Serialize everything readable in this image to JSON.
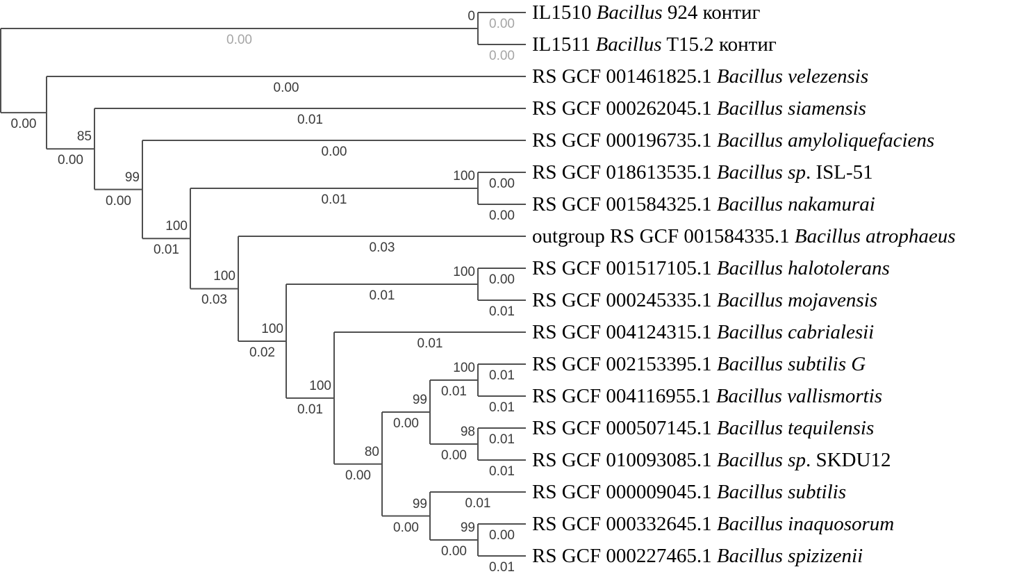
{
  "figure": {
    "kind": "phylogenetic-tree",
    "background": "#ffffff",
    "line_color": "#4f4f4f",
    "number_color": "#3a3a3a",
    "muted_number_color": "#a6a6a6",
    "taxon_color": "#000000"
  },
  "tree": {
    "support": null,
    "length": null,
    "children": [
      {
        "support": "0",
        "length": "0.00",
        "length_muted": true,
        "children": [
          {
            "length": "0.00",
            "length_muted": true,
            "label": {
              "pre": "IL1510 ",
              "it": "Bacillus",
              "post": " 924 контиг"
            }
          },
          {
            "length": "0.00",
            "length_muted": true,
            "label": {
              "pre": "IL1511 ",
              "it": "Bacillus",
              "post": " T15.2 контиг"
            }
          }
        ]
      },
      {
        "support": null,
        "length": "0.00",
        "children": [
          {
            "length": "0.00",
            "label": {
              "pre": "RS GCF 001461825.1 ",
              "it": "Bacillus velezensis",
              "post": ""
            }
          },
          {
            "support": "85",
            "length": "0.00",
            "children": [
              {
                "length": "0.01",
                "label": {
                  "pre": "RS GCF 000262045.1 ",
                  "it": "Bacillus siamensis",
                  "post": ""
                }
              },
              {
                "support": "99",
                "length": "0.00",
                "children": [
                  {
                    "length": "0.00",
                    "label": {
                      "pre": "RS GCF 000196735.1 ",
                      "it": "Bacillus amyloliquefaciens",
                      "post": ""
                    }
                  },
                  {
                    "support": "100",
                    "length": "0.01",
                    "children": [
                      {
                        "support": "100",
                        "length": "0.01",
                        "children": [
                          {
                            "length": "0.00",
                            "label": {
                              "pre": "RS GCF 018613535.1 ",
                              "it": "Bacillus sp",
                              "post": ". ISL-51"
                            }
                          },
                          {
                            "length": "0.00",
                            "label": {
                              "pre": "RS GCF 001584325.1 ",
                              "it": "Bacillus nakamurai",
                              "post": ""
                            }
                          }
                        ]
                      },
                      {
                        "support": "100",
                        "length": "0.03",
                        "children": [
                          {
                            "length": "0.03",
                            "label": {
                              "pre": "outgroup RS GCF 001584335.1 ",
                              "it": "Bacillus atrophaeus",
                              "post": ""
                            }
                          },
                          {
                            "support": "100",
                            "length": "0.02",
                            "children": [
                              {
                                "support": "100",
                                "length": "0.01",
                                "children": [
                                  {
                                    "length": "0.00",
                                    "label": {
                                      "pre": "RS GCF 001517105.1 ",
                                      "it": "Bacillus halotolerans",
                                      "post": ""
                                    }
                                  },
                                  {
                                    "length": "0.01",
                                    "label": {
                                      "pre": "RS GCF 000245335.1 ",
                                      "it": "Bacillus mojavensis",
                                      "post": ""
                                    }
                                  }
                                ]
                              },
                              {
                                "support": "100",
                                "length": "0.01",
                                "children": [
                                  {
                                    "length": "0.01",
                                    "label": {
                                      "pre": "RS GCF 004124315.1 ",
                                      "it": "Bacillus cabrialesii",
                                      "post": ""
                                    }
                                  },
                                  {
                                    "support": "80",
                                    "length": "0.00",
                                    "children": [
                                      {
                                        "support": "99",
                                        "length": "0.00",
                                        "children": [
                                          {
                                            "support": "100",
                                            "length": "0.01",
                                            "children": [
                                              {
                                                "length": "0.01",
                                                "label": {
                                                  "pre": "RS GCF 002153395.1 ",
                                                  "it": "Bacillus subtilis G",
                                                  "post": ""
                                                }
                                              },
                                              {
                                                "length": "0.01",
                                                "label": {
                                                  "pre": "RS GCF 004116955.1 ",
                                                  "it": "Bacillus vallismortis",
                                                  "post": ""
                                                }
                                              }
                                            ]
                                          },
                                          {
                                            "support": "98",
                                            "length": "0.00",
                                            "children": [
                                              {
                                                "length": "0.01",
                                                "label": {
                                                  "pre": "RS GCF 000507145.1 ",
                                                  "it": "Bacillus tequilensis",
                                                  "post": ""
                                                }
                                              },
                                              {
                                                "length": "0.01",
                                                "label": {
                                                  "pre": "RS GCF 010093085.1 ",
                                                  "it": "Bacillus sp",
                                                  "post": ". SKDU12"
                                                }
                                              }
                                            ]
                                          }
                                        ]
                                      },
                                      {
                                        "support": "99",
                                        "length": "0.00",
                                        "children": [
                                          {
                                            "length": "0.01",
                                            "label": {
                                              "pre": "RS GCF 000009045.1 ",
                                              "it": "Bacillus subtilis",
                                              "post": ""
                                            }
                                          },
                                          {
                                            "support": "99",
                                            "length": "0.00",
                                            "children": [
                                              {
                                                "length": "0.00",
                                                "label": {
                                                  "pre": "RS GCF 000332645.1 ",
                                                  "it": "Bacillus inaquosorum",
                                                  "post": ""
                                                }
                                              },
                                              {
                                                "length": "0.01",
                                                "label": {
                                                  "pre": "RS GCF 000227465.1 ",
                                                  "it": "Bacillus spizizenii",
                                                  "post": ""
                                                }
                                              }
                                            ]
                                          }
                                        ]
                                      }
                                    ]
                                  }
                                ]
                              }
                            ]
                          }
                        ]
                      }
                    ]
                  }
                ]
              }
            ]
          }
        ]
      }
    ]
  }
}
